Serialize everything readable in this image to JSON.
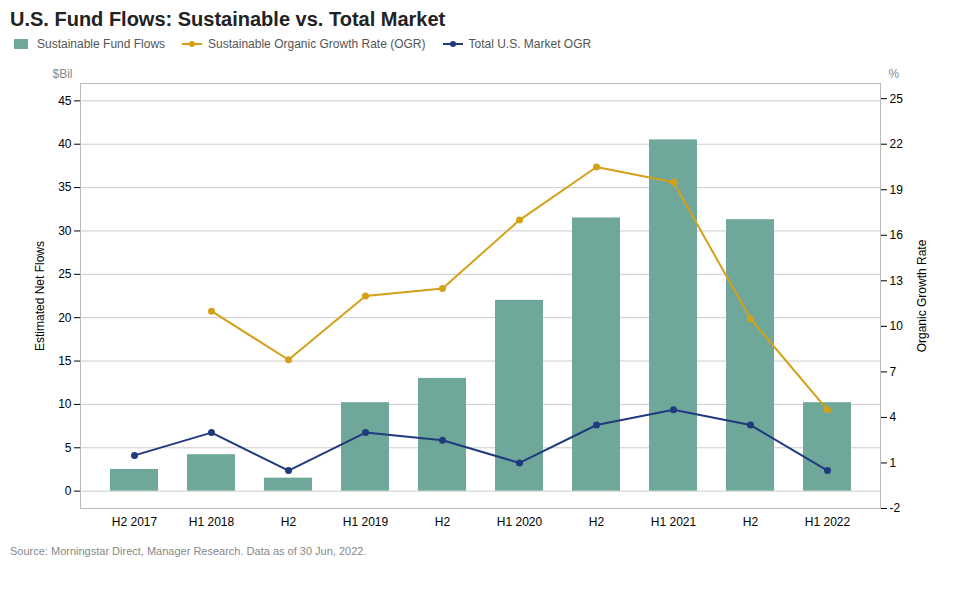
{
  "chart_data": {
    "type": "bar",
    "title": "U.S. Fund Flows: Sustainable vs. Total Market",
    "source": "Source: Morningstar Direct, Manager Research. Data as of 30 Jun, 2022.",
    "categories": [
      "H2 2017",
      "H1 2018",
      "H2",
      "H1 2019",
      "H2",
      "H1 2020",
      "H2",
      "H1 2021",
      "H2",
      "H1 2022"
    ],
    "series": [
      {
        "name": "Sustainable Fund Flows",
        "type": "bar",
        "color": "#6fa89b",
        "values": [
          2.5,
          4.2,
          1.5,
          10.2,
          13.0,
          22.0,
          31.5,
          40.5,
          31.3,
          10.2
        ]
      },
      {
        "name": "Sustainable Organic Growth Rate (OGR)",
        "type": "line",
        "axis": "y2",
        "color": "#d4a017",
        "marker": "circle",
        "values": [
          null,
          11.0,
          7.8,
          12.0,
          12.5,
          17.0,
          20.5,
          19.5,
          10.5,
          4.5
        ]
      },
      {
        "name": "Total U.S. Market OGR",
        "type": "line",
        "axis": "y2",
        "color": "#1f3a7d",
        "marker": "circle",
        "values": [
          1.5,
          3.0,
          0.5,
          3.0,
          2.5,
          1.0,
          3.5,
          4.5,
          3.5,
          0.5
        ]
      }
    ],
    "ylim": [
      -2,
      47
    ],
    "yticks": [
      0,
      5,
      10,
      15,
      20,
      25,
      30,
      35,
      40,
      45
    ],
    "y2lim": [
      -2,
      26
    ],
    "y2ticks": [
      -2,
      1,
      4,
      7,
      10,
      13,
      16,
      19,
      22,
      25
    ],
    "ylabel": "Estimated Net Flows",
    "y2label": "Organic Growth Rate",
    "y_unit": "$Bil",
    "y2_unit": "%",
    "grid": true,
    "legend": "upper left"
  }
}
